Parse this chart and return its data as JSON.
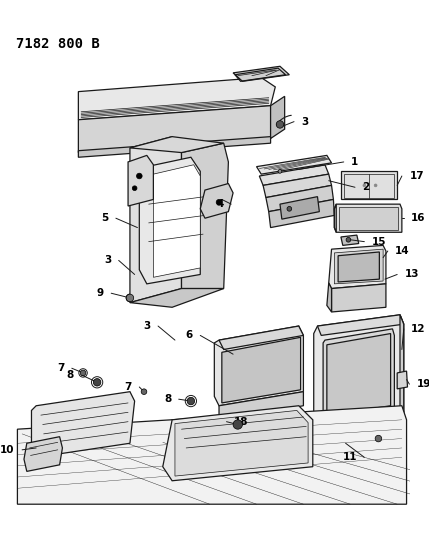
{
  "title": "7182 800 B",
  "bg_color": "#ffffff",
  "lc": "#1a1a1a",
  "lw_main": 0.9,
  "lw_thin": 0.5,
  "fig_w": 4.29,
  "fig_h": 5.33,
  "dpi": 100,
  "label_fs": 7.0,
  "title_fs": 10.0
}
